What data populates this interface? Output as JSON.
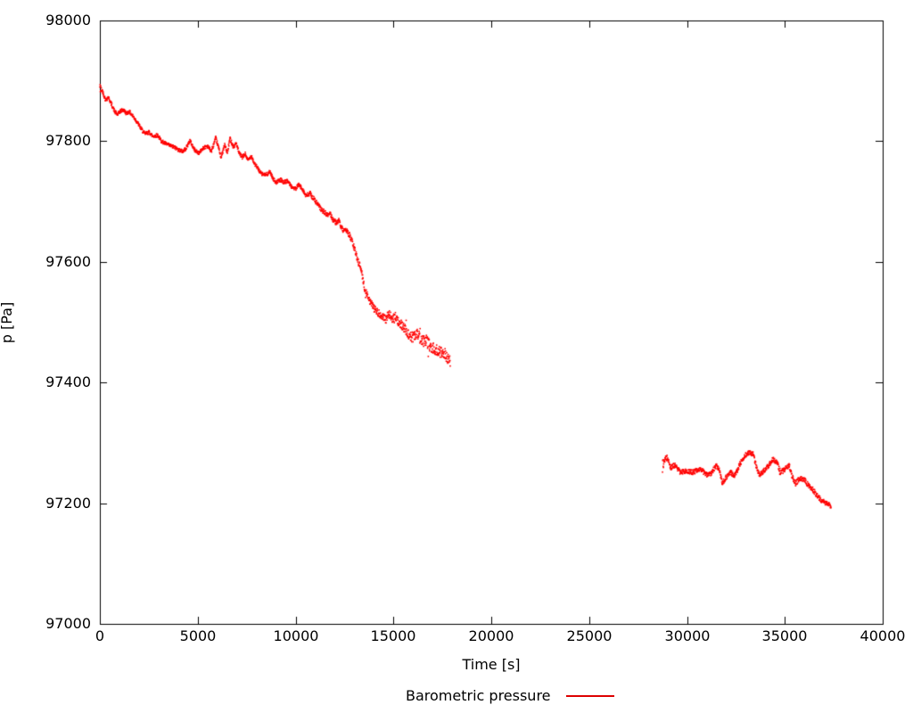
{
  "figure": {
    "background_color": "#ffffff",
    "border_color": "#000000",
    "text_color": "#000000"
  },
  "chart_data": {
    "type": "scatter",
    "title": "",
    "xlabel": "Time [s]",
    "ylabel": "p [Pa]",
    "xlim": [
      0,
      40000
    ],
    "ylim": [
      97000,
      98000
    ],
    "x_ticks": [
      0,
      5000,
      10000,
      15000,
      20000,
      25000,
      30000,
      35000,
      40000
    ],
    "y_ticks": [
      97000,
      97200,
      97400,
      97600,
      97800,
      98000
    ],
    "grid": false,
    "ticks_mirrored_inward": true,
    "legend": {
      "label": "Barometric pressure",
      "position": "below-plot-center",
      "color": "#dd0000"
    },
    "series": [
      {
        "name": "Barometric pressure",
        "color": "#ff0000",
        "style": "dots",
        "note": "points are [time_s, pressure_Pa, scatter_amplitude_Pa]; two segments separated by a data gap 17910-28750 s",
        "segments": [
          [
            [
              0,
              97888,
              9
            ],
            [
              120,
              97884,
              3
            ],
            [
              300,
              97868,
              3
            ],
            [
              430,
              97873,
              3
            ],
            [
              600,
              97861,
              3
            ],
            [
              760,
              97849,
              3
            ],
            [
              900,
              97844,
              3
            ],
            [
              1060,
              97850,
              3
            ],
            [
              1200,
              97852,
              3
            ],
            [
              1360,
              97846,
              3
            ],
            [
              1500,
              97849,
              3
            ],
            [
              1700,
              97841,
              3
            ],
            [
              1900,
              97832,
              3
            ],
            [
              2100,
              97821,
              3
            ],
            [
              2300,
              97812,
              3
            ],
            [
              2520,
              97815,
              3
            ],
            [
              2700,
              97808,
              3
            ],
            [
              2950,
              97810,
              3
            ],
            [
              3150,
              97800,
              3
            ],
            [
              3350,
              97796,
              3
            ],
            [
              3560,
              97793,
              3
            ],
            [
              3800,
              97790,
              3
            ],
            [
              4010,
              97786,
              3
            ],
            [
              4240,
              97783,
              3
            ],
            [
              4420,
              97789,
              3
            ],
            [
              4600,
              97801,
              3
            ],
            [
              4830,
              97786,
              3
            ],
            [
              5060,
              97780,
              3
            ],
            [
              5290,
              97789,
              3
            ],
            [
              5510,
              97792,
              3
            ],
            [
              5700,
              97783,
              3
            ],
            [
              5920,
              97805,
              3
            ],
            [
              6060,
              97790,
              3
            ],
            [
              6200,
              97773,
              3
            ],
            [
              6380,
              97794,
              3
            ],
            [
              6520,
              97780,
              3
            ],
            [
              6650,
              97805,
              3
            ],
            [
              6830,
              97790,
              3
            ],
            [
              6970,
              97797,
              3
            ],
            [
              7110,
              97780,
              3
            ],
            [
              7290,
              97773,
              3
            ],
            [
              7430,
              97779,
              3
            ],
            [
              7560,
              97768,
              3
            ],
            [
              7750,
              97776,
              3
            ],
            [
              7880,
              97764,
              3
            ],
            [
              8110,
              97753,
              3
            ],
            [
              8250,
              97746,
              3
            ],
            [
              8470,
              97744,
              3
            ],
            [
              8700,
              97749,
              3
            ],
            [
              8880,
              97736,
              3
            ],
            [
              9020,
              97732,
              3
            ],
            [
              9250,
              97736,
              3
            ],
            [
              9390,
              97732,
              3
            ],
            [
              9610,
              97734,
              3
            ],
            [
              9800,
              97724,
              3
            ],
            [
              10020,
              97721,
              3
            ],
            [
              10160,
              97728,
              3
            ],
            [
              10390,
              97719,
              3
            ],
            [
              10520,
              97709,
              4
            ],
            [
              10750,
              97713,
              4
            ],
            [
              10980,
              97702,
              4
            ],
            [
              11160,
              97694,
              4
            ],
            [
              11300,
              97687,
              4
            ],
            [
              11480,
              97682,
              4
            ],
            [
              11620,
              97677,
              4
            ],
            [
              11760,
              97681,
              4
            ],
            [
              11890,
              97671,
              4
            ],
            [
              12070,
              97665,
              4
            ],
            [
              12210,
              97668,
              4
            ],
            [
              12350,
              97656,
              4
            ],
            [
              12480,
              97650,
              4
            ],
            [
              12620,
              97653,
              4
            ],
            [
              12760,
              97643,
              5
            ],
            [
              12890,
              97634,
              5
            ],
            [
              13000,
              97622,
              5
            ],
            [
              13120,
              97610,
              5
            ],
            [
              13230,
              97598,
              5
            ],
            [
              13330,
              97590,
              5
            ],
            [
              13440,
              97572,
              5
            ],
            [
              13530,
              97554,
              6
            ],
            [
              13660,
              97546,
              6
            ],
            [
              13800,
              97535,
              6
            ],
            [
              14030,
              97522,
              6
            ],
            [
              14250,
              97515,
              6
            ],
            [
              14420,
              97510,
              6
            ],
            [
              14600,
              97504,
              7
            ],
            [
              14760,
              97513,
              7
            ],
            [
              14950,
              97506,
              7
            ],
            [
              15100,
              97509,
              7
            ],
            [
              15250,
              97500,
              7
            ],
            [
              15400,
              97497,
              7
            ],
            [
              15650,
              97486,
              8
            ],
            [
              15900,
              97475,
              9
            ],
            [
              16100,
              97477,
              9
            ],
            [
              16220,
              97484,
              9
            ],
            [
              16400,
              97468,
              10
            ],
            [
              16650,
              97470,
              10
            ],
            [
              16850,
              97461,
              10
            ],
            [
              17100,
              97455,
              10
            ],
            [
              17320,
              97451,
              9
            ],
            [
              17590,
              97448,
              8
            ],
            [
              17770,
              97440,
              8
            ],
            [
              17910,
              97435,
              8
            ]
          ],
          [
            [
              28750,
              97262,
              11
            ],
            [
              28840,
              97271,
              5
            ],
            [
              28980,
              97276,
              4
            ],
            [
              29160,
              97259,
              4
            ],
            [
              29390,
              97263,
              4
            ],
            [
              29660,
              97251,
              4
            ],
            [
              29980,
              97254,
              4
            ],
            [
              30300,
              97251,
              4
            ],
            [
              30570,
              97256,
              4
            ],
            [
              30760,
              97255,
              4
            ],
            [
              30980,
              97247,
              4
            ],
            [
              31210,
              97248,
              4
            ],
            [
              31480,
              97262,
              4
            ],
            [
              31660,
              97256,
              4
            ],
            [
              31800,
              97233,
              4
            ],
            [
              31980,
              97242,
              4
            ],
            [
              32120,
              97247,
              4
            ],
            [
              32260,
              97251,
              4
            ],
            [
              32390,
              97244,
              4
            ],
            [
              32570,
              97254,
              4
            ],
            [
              32710,
              97266,
              4
            ],
            [
              32940,
              97278,
              4
            ],
            [
              33170,
              97284,
              4
            ],
            [
              33390,
              97281,
              4
            ],
            [
              33530,
              97262,
              4
            ],
            [
              33710,
              97247,
              4
            ],
            [
              33940,
              97254,
              4
            ],
            [
              34170,
              97262,
              4
            ],
            [
              34400,
              97273,
              4
            ],
            [
              34620,
              97266,
              4
            ],
            [
              34760,
              97251,
              6
            ],
            [
              34990,
              97256,
              4
            ],
            [
              35220,
              97263,
              4
            ],
            [
              35350,
              97247,
              4
            ],
            [
              35540,
              97233,
              5
            ],
            [
              35760,
              97241,
              4
            ],
            [
              35990,
              97239,
              4
            ],
            [
              36220,
              97229,
              4
            ],
            [
              36450,
              97222,
              4
            ],
            [
              36670,
              97211,
              4
            ],
            [
              36900,
              97204,
              4
            ],
            [
              37130,
              97199,
              4
            ],
            [
              37360,
              97196,
              4
            ]
          ]
        ]
      }
    ]
  }
}
